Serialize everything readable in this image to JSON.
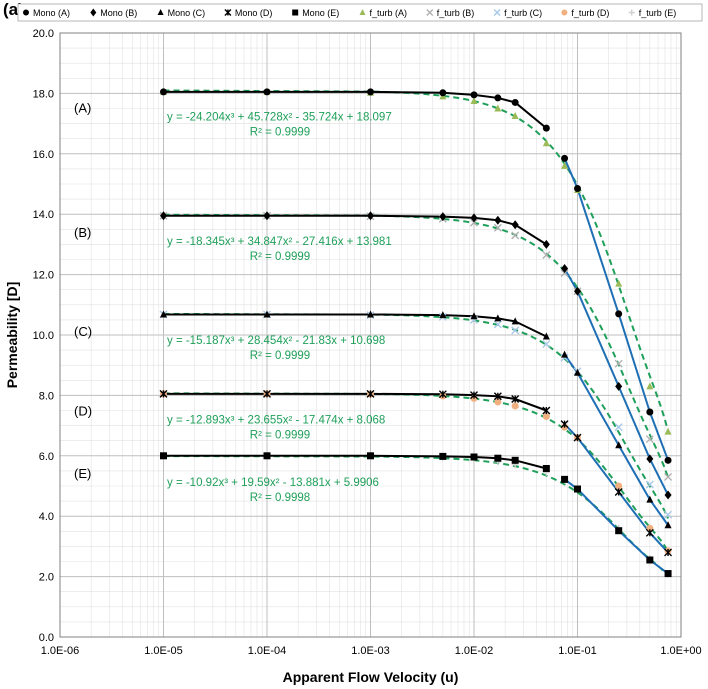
{
  "panel_label": "(a)",
  "chart_data": {
    "type": "scatter",
    "xlabel": "Apparent Flow Velocity (u)",
    "ylabel": "Permeability [D]",
    "xscale": "log",
    "xlim": [
      1e-06,
      1
    ],
    "ylim": [
      0,
      20
    ],
    "x_ticks": [
      "1.0E-06",
      "1.0E-05",
      "1.0E-04",
      "1.0E-03",
      "1.0E-02",
      "1.0E-01",
      "1.0E+00"
    ],
    "y_ticks": [
      "0.0",
      "2.0",
      "4.0",
      "6.0",
      "8.0",
      "10.0",
      "12.0",
      "14.0",
      "16.0",
      "18.0",
      "20.0"
    ],
    "grid": true,
    "legend_position": "top",
    "colors": {
      "mono": "#000000",
      "fit": "#1fa05a",
      "linear": "#1f6fb5"
    },
    "series": [
      {
        "name": "Mono (A)",
        "marker": "circle",
        "color": "#000000",
        "x": [
          1e-05,
          0.0001,
          0.001,
          0.005,
          0.01,
          0.017,
          0.025,
          0.05,
          0.075,
          0.1,
          0.25,
          0.5,
          0.75
        ],
        "y": [
          18.05,
          18.05,
          18.05,
          18.02,
          17.95,
          17.85,
          17.7,
          16.85,
          15.85,
          14.85,
          10.7,
          7.45,
          5.85
        ]
      },
      {
        "name": "Mono (B)",
        "marker": "diamond",
        "color": "#000000",
        "x": [
          1e-05,
          0.0001,
          0.001,
          0.005,
          0.01,
          0.017,
          0.025,
          0.05,
          0.075,
          0.1,
          0.25,
          0.5,
          0.75
        ],
        "y": [
          13.95,
          13.95,
          13.95,
          13.92,
          13.88,
          13.8,
          13.65,
          13.0,
          12.2,
          11.45,
          8.3,
          5.9,
          4.7
        ]
      },
      {
        "name": "Mono (C)",
        "marker": "triangle",
        "color": "#000000",
        "x": [
          1e-05,
          0.0001,
          0.001,
          0.005,
          0.01,
          0.017,
          0.025,
          0.05,
          0.075,
          0.1,
          0.25,
          0.5,
          0.75
        ],
        "y": [
          10.68,
          10.68,
          10.68,
          10.66,
          10.62,
          10.55,
          10.45,
          9.95,
          9.35,
          8.75,
          6.35,
          4.55,
          3.7
        ]
      },
      {
        "name": "Mono (D)",
        "marker": "star",
        "color": "#000000",
        "x": [
          1e-05,
          0.0001,
          0.001,
          0.005,
          0.01,
          0.017,
          0.025,
          0.05,
          0.075,
          0.1,
          0.25,
          0.5,
          0.75
        ],
        "y": [
          8.05,
          8.05,
          8.05,
          8.04,
          8.01,
          7.97,
          7.88,
          7.5,
          7.05,
          6.6,
          4.8,
          3.45,
          2.8
        ]
      },
      {
        "name": "Mono (E)",
        "marker": "square",
        "color": "#000000",
        "x": [
          1e-05,
          0.0001,
          0.001,
          0.005,
          0.01,
          0.017,
          0.025,
          0.05,
          0.075,
          0.1,
          0.25,
          0.5,
          0.75
        ],
        "y": [
          6.0,
          6.0,
          6.0,
          5.98,
          5.96,
          5.92,
          5.85,
          5.58,
          5.22,
          4.9,
          3.52,
          2.55,
          2.1
        ]
      },
      {
        "name": "f_turb (A)",
        "marker": "triangle",
        "color": "#9bbb59",
        "x": [
          1e-05,
          0.0001,
          0.001,
          0.005,
          0.01,
          0.017,
          0.025,
          0.05,
          0.075,
          0.1,
          0.25,
          0.5,
          0.75
        ],
        "y": [
          18.05,
          18.05,
          18.02,
          17.9,
          17.75,
          17.5,
          17.25,
          16.35,
          15.6,
          14.8,
          11.7,
          8.3,
          6.8
        ]
      },
      {
        "name": "f_turb (B)",
        "marker": "x",
        "color": "#b0b0b0",
        "x": [
          1e-05,
          0.0001,
          0.001,
          0.005,
          0.01,
          0.017,
          0.025,
          0.05,
          0.075,
          0.1,
          0.25,
          0.5,
          0.75
        ],
        "y": [
          13.95,
          13.95,
          13.93,
          13.85,
          13.72,
          13.55,
          13.3,
          12.65,
          12.05,
          11.45,
          9.05,
          6.55,
          5.3
        ]
      },
      {
        "name": "f_turb (C)",
        "marker": "x",
        "color": "#a8c8e8",
        "x": [
          1e-05,
          0.0001,
          0.001,
          0.005,
          0.01,
          0.017,
          0.025,
          0.05,
          0.075,
          0.1,
          0.25,
          0.5,
          0.75
        ],
        "y": [
          10.68,
          10.68,
          10.66,
          10.6,
          10.5,
          10.35,
          10.15,
          9.7,
          9.25,
          8.8,
          6.95,
          5.05,
          4.05
        ]
      },
      {
        "name": "f_turb (D)",
        "marker": "circle",
        "color": "#f0b080",
        "x": [
          1e-05,
          0.0001,
          0.001,
          0.005,
          0.01,
          0.017,
          0.025,
          0.05,
          0.075,
          0.1,
          0.25,
          0.5,
          0.75
        ],
        "y": [
          8.05,
          8.05,
          8.04,
          7.98,
          7.9,
          7.78,
          7.65,
          7.3,
          6.95,
          6.6,
          5.0,
          3.6,
          2.85
        ]
      },
      {
        "name": "f_turb (E)",
        "marker": "plus",
        "color": "#d0d0d0",
        "x": [
          1e-05,
          0.0001,
          0.001,
          0.005,
          0.01,
          0.017,
          0.025,
          0.05,
          0.075,
          0.1,
          0.25,
          0.5,
          0.75
        ],
        "y": [
          6.0,
          6.0,
          5.98,
          5.95,
          5.88,
          5.8,
          5.7,
          5.45,
          5.2,
          4.95,
          3.6,
          2.6,
          2.1
        ]
      }
    ],
    "fits": [
      {
        "label": "(A)",
        "equation": "y = -24.204x³ + 45.728x² - 35.724x + 18.097",
        "r2": "R² = 0.9999",
        "coef": [
          -24.204,
          45.728,
          -35.724,
          18.097
        ]
      },
      {
        "label": "(B)",
        "equation": "y = -18.345x³ + 34.847x² - 27.416x + 13.981",
        "r2": "R² = 0.9999",
        "coef": [
          -18.345,
          34.847,
          -27.416,
          13.981
        ]
      },
      {
        "label": "(C)",
        "equation": "y = -15.187x³ + 28.454x² - 21.83x + 10.698",
        "r2": "R² = 0.9999",
        "coef": [
          -15.187,
          28.454,
          -21.83,
          10.698
        ]
      },
      {
        "label": "(D)",
        "equation": "y = -12.893x³ + 23.655x² - 17.474x + 8.068",
        "r2": "R² = 0.9999",
        "coef": [
          -12.893,
          23.655,
          -17.474,
          8.068
        ]
      },
      {
        "label": "(E)",
        "equation": "y = -10.92x³ + 19.59x² - 13.881x + 5.9906",
        "r2": "R² = 0.9998",
        "coef": [
          -10.92,
          19.59,
          -13.881,
          5.9906
        ]
      }
    ]
  }
}
